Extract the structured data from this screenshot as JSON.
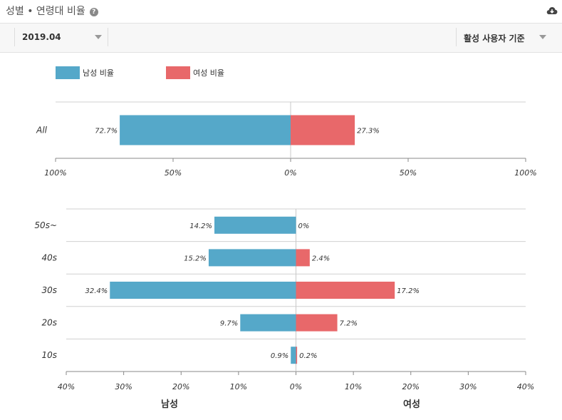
{
  "header": {
    "title": "성별 • 연령대 비율",
    "help_icon": "question-circle-icon",
    "download_icon": "cloud-download-icon"
  },
  "filters": {
    "month": "2019.04",
    "basis": "활성 사용자 기준"
  },
  "legend": {
    "male": "남성 비율",
    "female": "여성 비율"
  },
  "colors": {
    "male": "#55a8c9",
    "female": "#e8686a"
  },
  "chart_data": [
    {
      "type": "bar",
      "orientation": "horizontal-diverging",
      "categories": [
        "All"
      ],
      "series": [
        {
          "name": "남성 비율",
          "values": [
            72.7
          ],
          "labels": [
            "72.7%"
          ]
        },
        {
          "name": "여성 비율",
          "values": [
            27.3
          ],
          "labels": [
            "27.3%"
          ]
        }
      ],
      "xlim": [
        -100,
        100
      ],
      "tick_labels": [
        "100%",
        "50%",
        "0%",
        "50%",
        "100%"
      ]
    },
    {
      "type": "bar",
      "orientation": "horizontal-diverging",
      "categories": [
        "50s~",
        "40s",
        "30s",
        "20s",
        "10s"
      ],
      "series": [
        {
          "name": "남성",
          "values": [
            14.2,
            15.2,
            32.4,
            9.7,
            0.9
          ],
          "labels": [
            "14.2%",
            "15.2%",
            "32.4%",
            "9.7%",
            "0.9%"
          ]
        },
        {
          "name": "여성",
          "values": [
            0,
            2.4,
            17.2,
            7.2,
            0.2
          ],
          "labels": [
            "0%",
            "2.4%",
            "17.2%",
            "7.2%",
            "0.2%"
          ]
        }
      ],
      "xlim": [
        -40,
        40
      ],
      "tick_labels": [
        "40%",
        "30%",
        "20%",
        "10%",
        "0%",
        "10%",
        "20%",
        "30%",
        "40%"
      ],
      "xlabel_left": "남성",
      "xlabel_right": "여성"
    }
  ]
}
